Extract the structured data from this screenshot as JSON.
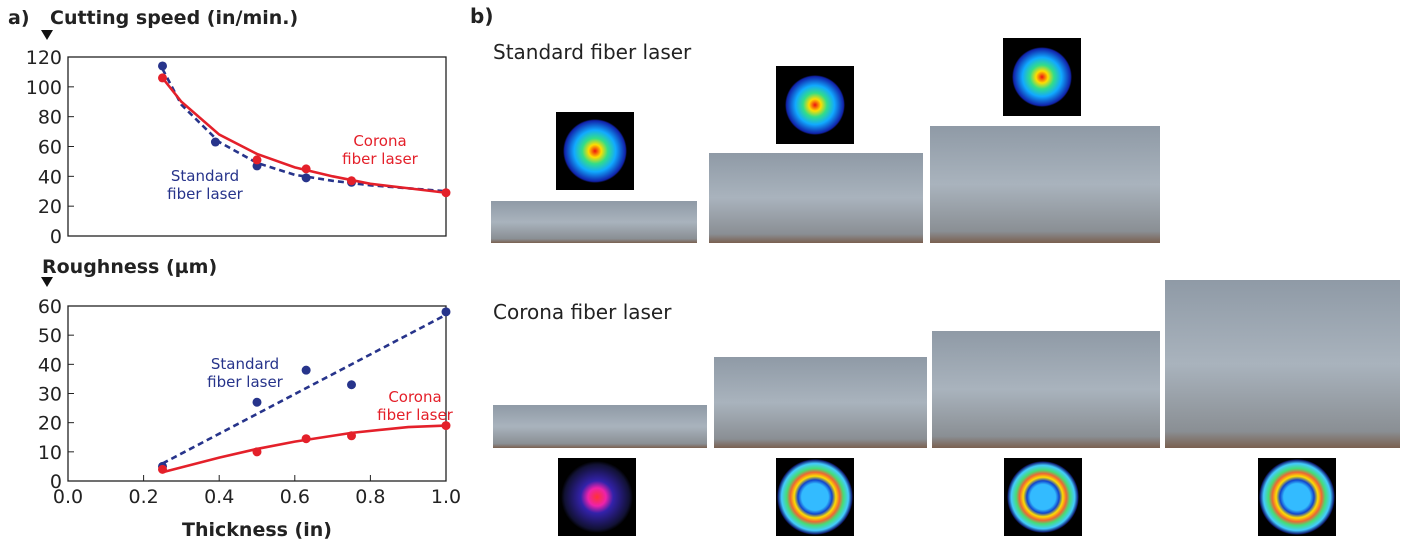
{
  "panel_a_label": "a)",
  "chart_data": [
    {
      "type": "line",
      "title": "Cutting speed (in/min.)",
      "xlim": [
        0,
        1
      ],
      "ylim": [
        0,
        120
      ],
      "yticks": [
        0,
        20,
        40,
        60,
        80,
        100,
        120
      ],
      "series": [
        {
          "name": "Standard fiber laser",
          "color": "#27348b",
          "dashed": true,
          "x": [
            0.25,
            0.39,
            0.5,
            0.63,
            0.75
          ],
          "values": [
            114,
            63,
            47,
            39,
            36
          ],
          "fit_x": [
            0.25,
            0.3,
            0.4,
            0.5,
            0.6,
            0.7,
            0.8,
            0.9,
            1.0
          ],
          "fit_values": [
            112,
            88,
            63,
            49,
            41,
            37,
            34,
            32,
            30
          ]
        },
        {
          "name": "Corona fiber laser",
          "color": "#e4202a",
          "dashed": false,
          "x": [
            0.25,
            0.5,
            0.63,
            0.75,
            1.0
          ],
          "values": [
            106,
            51,
            45,
            37,
            29
          ],
          "fit_x": [
            0.25,
            0.3,
            0.4,
            0.5,
            0.6,
            0.7,
            0.8,
            0.9,
            1.0
          ],
          "fit_values": [
            106,
            90,
            68,
            55,
            46,
            40,
            35,
            32,
            29
          ]
        }
      ]
    },
    {
      "type": "line",
      "title": "Roughness (µm)",
      "xlabel": "Thickness (in)",
      "xlim": [
        0,
        1
      ],
      "xticks": [
        {
          "value": 0,
          "label": "0.0"
        },
        0.2,
        0.4,
        0.6,
        0.8,
        {
          "value": 1,
          "label": "1.0"
        }
      ],
      "ylim": [
        0,
        60
      ],
      "yticks": [
        0,
        10,
        20,
        30,
        40,
        50,
        60
      ],
      "series": [
        {
          "name": "Standard fiber laser",
          "color": "#27348b",
          "dashed": true,
          "x": [
            0.25,
            0.5,
            0.63,
            0.75,
            1.0
          ],
          "values": [
            5,
            27,
            38,
            33,
            58
          ],
          "fit_x": [
            0.25,
            1.0
          ],
          "fit_values": [
            6,
            57
          ]
        },
        {
          "name": "Corona fiber laser",
          "color": "#e4202a",
          "dashed": false,
          "x": [
            0.25,
            0.5,
            0.63,
            0.75,
            1.0
          ],
          "values": [
            4,
            10,
            14.5,
            15.5,
            19
          ],
          "fit_x": [
            0.25,
            0.4,
            0.5,
            0.6,
            0.75,
            0.9,
            1.0
          ],
          "fit_values": [
            3,
            8,
            11,
            13.5,
            16.5,
            18.5,
            19
          ]
        }
      ]
    }
  ],
  "panel_b": {
    "label": "b)",
    "rows": [
      "Standard fiber laser",
      "Corona fiber laser"
    ]
  }
}
